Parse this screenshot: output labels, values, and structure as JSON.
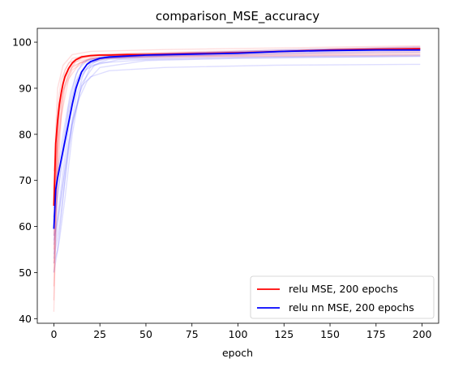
{
  "chart_data": {
    "type": "line",
    "title": "comparison_MSE_accuracy",
    "xlabel": "epoch",
    "ylabel": "",
    "xlim": [
      -9,
      209
    ],
    "ylim": [
      39,
      103
    ],
    "xticks": [
      0,
      25,
      50,
      75,
      100,
      125,
      150,
      175,
      200
    ],
    "yticks": [
      40,
      50,
      60,
      70,
      80,
      90,
      100
    ],
    "grid": false,
    "legend_position": "lower-right",
    "colors": {
      "red": "#ff0000",
      "blue": "#0000ff"
    },
    "series": [
      {
        "name": "relu MSE, 200 epochs",
        "color": "#ff0000",
        "x": [
          0,
          1,
          2,
          3,
          4,
          5,
          6,
          8,
          10,
          12,
          15,
          20,
          25,
          30,
          40,
          50,
          75,
          100,
          125,
          150,
          175,
          199
        ],
        "values": [
          64.5,
          78,
          83,
          86.5,
          89,
          91,
          92.5,
          94.3,
          95.5,
          96.2,
          96.8,
          97.1,
          97.2,
          97.2,
          97.3,
          97.3,
          97.5,
          97.7,
          98.0,
          98.3,
          98.5,
          98.6
        ]
      },
      {
        "name": "relu nn MSE, 200 epochs",
        "color": "#0000ff",
        "x": [
          0,
          1,
          2,
          3,
          4,
          5,
          6,
          8,
          10,
          12,
          15,
          18,
          20,
          25,
          30,
          40,
          50,
          75,
          100,
          125,
          150,
          175,
          199
        ],
        "values": [
          59.5,
          68,
          70.5,
          72.5,
          74.5,
          76.5,
          78.5,
          82.5,
          86.5,
          90,
          93.5,
          95.2,
          95.8,
          96.5,
          96.8,
          97.0,
          97.2,
          97.4,
          97.6,
          98.0,
          98.2,
          98.3,
          98.3
        ]
      }
    ],
    "faint_runs": {
      "red": [
        [
          [
            0,
            50
          ],
          [
            2,
            80
          ],
          [
            4,
            90
          ],
          [
            6,
            94
          ],
          [
            10,
            96.5
          ],
          [
            20,
            97.2
          ],
          [
            50,
            97.5
          ],
          [
            100,
            97.8
          ],
          [
            150,
            98.2
          ],
          [
            199,
            98.6
          ]
        ],
        [
          [
            0,
            47
          ],
          [
            2,
            76
          ],
          [
            5,
            89
          ],
          [
            8,
            93.5
          ],
          [
            12,
            95.8
          ],
          [
            25,
            96.8
          ],
          [
            60,
            97.0
          ],
          [
            120,
            97.2
          ],
          [
            199,
            97.5
          ]
        ],
        [
          [
            0,
            55
          ],
          [
            1,
            72
          ],
          [
            3,
            85
          ],
          [
            6,
            91
          ],
          [
            10,
            94.5
          ],
          [
            18,
            96.2
          ],
          [
            40,
            96.8
          ],
          [
            100,
            97.0
          ],
          [
            199,
            97.3
          ]
        ],
        [
          [
            0,
            44
          ],
          [
            2,
            70
          ],
          [
            4,
            84
          ],
          [
            8,
            92
          ],
          [
            14,
            95.5
          ],
          [
            30,
            96.5
          ],
          [
            80,
            96.8
          ],
          [
            150,
            97.0
          ],
          [
            199,
            97.1
          ]
        ],
        [
          [
            0,
            41.5
          ],
          [
            1,
            60
          ],
          [
            3,
            80
          ],
          [
            6,
            90
          ],
          [
            10,
            94
          ],
          [
            20,
            96.5
          ],
          [
            60,
            97.0
          ],
          [
            120,
            97.4
          ],
          [
            199,
            97.8
          ]
        ],
        [
          [
            0,
            68
          ],
          [
            2,
            86
          ],
          [
            4,
            92
          ],
          [
            8,
            95.5
          ],
          [
            15,
            97
          ],
          [
            30,
            97.5
          ],
          [
            80,
            98.0
          ],
          [
            150,
            98.6
          ],
          [
            199,
            99.0
          ]
        ],
        [
          [
            0,
            72
          ],
          [
            2,
            90
          ],
          [
            5,
            95
          ],
          [
            10,
            97.3
          ],
          [
            20,
            98.0
          ],
          [
            60,
            98.4
          ],
          [
            130,
            98.8
          ],
          [
            199,
            99.2
          ]
        ],
        [
          [
            0,
            58
          ],
          [
            2,
            82
          ],
          [
            5,
            91
          ],
          [
            9,
            95
          ],
          [
            16,
            96.8
          ],
          [
            35,
            97.4
          ],
          [
            90,
            97.9
          ],
          [
            160,
            98.4
          ],
          [
            199,
            98.7
          ]
        ],
        [
          [
            0,
            62
          ],
          [
            3,
            87
          ],
          [
            6,
            93
          ],
          [
            12,
            96.2
          ],
          [
            25,
            97.1
          ],
          [
            70,
            97.6
          ],
          [
            140,
            98.1
          ],
          [
            199,
            98.4
          ]
        ],
        [
          [
            0,
            52
          ],
          [
            2,
            78
          ],
          [
            5,
            89.5
          ],
          [
            10,
            94.8
          ],
          [
            20,
            96.5
          ],
          [
            50,
            97.1
          ],
          [
            110,
            97.6
          ],
          [
            199,
            98.0
          ]
        ]
      ],
      "blue": [
        [
          [
            0,
            52
          ],
          [
            2,
            55
          ],
          [
            4,
            62
          ],
          [
            8,
            78
          ],
          [
            12,
            88
          ],
          [
            16,
            93
          ],
          [
            20,
            95.5
          ],
          [
            30,
            96.5
          ],
          [
            60,
            97.0
          ],
          [
            120,
            97.6
          ],
          [
            199,
            98.2
          ]
        ],
        [
          [
            0,
            50
          ],
          [
            3,
            57
          ],
          [
            6,
            66
          ],
          [
            10,
            80
          ],
          [
            14,
            89
          ],
          [
            20,
            94.8
          ],
          [
            30,
            96.3
          ],
          [
            70,
            97.0
          ],
          [
            140,
            97.5
          ],
          [
            199,
            97.8
          ]
        ],
        [
          [
            0,
            56
          ],
          [
            2,
            62
          ],
          [
            5,
            72
          ],
          [
            9,
            84
          ],
          [
            13,
            91
          ],
          [
            18,
            94.5
          ],
          [
            25,
            96.4
          ],
          [
            50,
            97.0
          ],
          [
            110,
            97.8
          ],
          [
            199,
            98.6
          ]
        ],
        [
          [
            0,
            53
          ],
          [
            3,
            60
          ],
          [
            6,
            70
          ],
          [
            10,
            82
          ],
          [
            15,
            90.5
          ],
          [
            20,
            92.5
          ],
          [
            30,
            93.8
          ],
          [
            60,
            94.5
          ],
          [
            120,
            95.0
          ],
          [
            199,
            95.2
          ]
        ],
        [
          [
            0,
            62
          ],
          [
            2,
            70
          ],
          [
            5,
            78
          ],
          [
            8,
            86
          ],
          [
            12,
            93
          ],
          [
            16,
            95.8
          ],
          [
            25,
            96.8
          ],
          [
            60,
            97.5
          ],
          [
            130,
            98.4
          ],
          [
            199,
            98.8
          ]
        ],
        [
          [
            0,
            58
          ],
          [
            2,
            66
          ],
          [
            4,
            74
          ],
          [
            8,
            85
          ],
          [
            12,
            91.5
          ],
          [
            17,
            94
          ],
          [
            25,
            95.5
          ],
          [
            50,
            96.2
          ],
          [
            100,
            96.6
          ],
          [
            199,
            97.0
          ]
        ],
        [
          [
            0,
            54
          ],
          [
            3,
            63
          ],
          [
            6,
            73
          ],
          [
            10,
            83
          ],
          [
            14,
            88
          ],
          [
            18,
            91.5
          ],
          [
            25,
            94.5
          ],
          [
            50,
            96.0
          ],
          [
            100,
            96.5
          ],
          [
            199,
            96.9
          ]
        ],
        [
          [
            0,
            64
          ],
          [
            2,
            72
          ],
          [
            5,
            80
          ],
          [
            9,
            89
          ],
          [
            13,
            94
          ],
          [
            18,
            96
          ],
          [
            30,
            97.1
          ],
          [
            80,
            97.8
          ],
          [
            150,
            98.5
          ],
          [
            199,
            99.0
          ]
        ],
        [
          [
            0,
            60
          ],
          [
            2,
            67
          ],
          [
            5,
            75
          ],
          [
            9,
            86
          ],
          [
            13,
            92.5
          ],
          [
            18,
            95.2
          ],
          [
            28,
            96.6
          ],
          [
            70,
            97.3
          ],
          [
            150,
            98.0
          ],
          [
            199,
            98.5
          ]
        ],
        [
          [
            0,
            57
          ],
          [
            3,
            64
          ],
          [
            6,
            72
          ],
          [
            10,
            82
          ],
          [
            15,
            91
          ],
          [
            22,
            95.0
          ],
          [
            35,
            96.2
          ],
          [
            90,
            96.8
          ],
          [
            199,
            97.2
          ]
        ]
      ]
    }
  }
}
